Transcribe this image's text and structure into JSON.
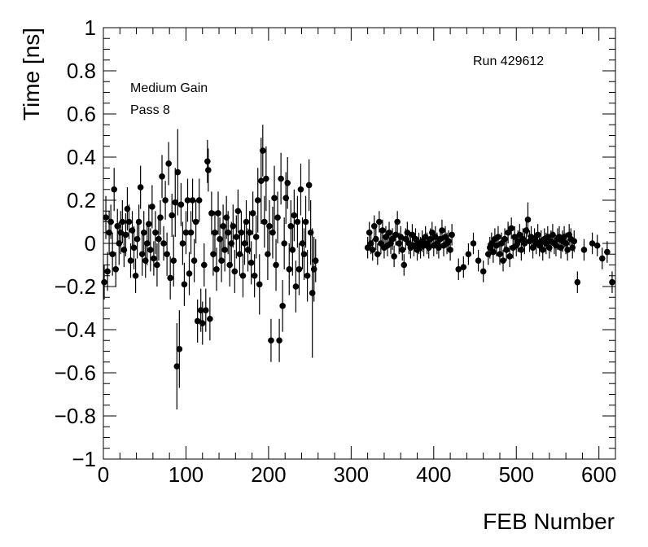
{
  "chart_data": {
    "type": "scatter",
    "xlabel": "FEB Number",
    "ylabel": "Time [ns]",
    "xlim": [
      0,
      620
    ],
    "ylim": [
      -1,
      1
    ],
    "x_ticks": [
      0,
      100,
      200,
      300,
      400,
      500,
      600
    ],
    "y_ticks": [
      -1,
      -0.8,
      -0.6,
      -0.4,
      -0.2,
      0,
      0.2,
      0.4,
      0.6,
      0.8,
      1
    ],
    "x_tick_labels": [
      "0",
      "100",
      "200",
      "300",
      "400",
      "500",
      "600"
    ],
    "y_tick_labels": [
      "−1",
      "−0.8",
      "−0.6",
      "−0.4",
      "−0.2",
      "0",
      "0.2",
      "0.4",
      "0.6",
      "0.8",
      "1"
    ],
    "annotations": [
      "Medium Gain",
      "Pass 8",
      "Run 429612"
    ],
    "marker": "filled-circle",
    "error_bars": true,
    "grid": false,
    "points": [
      {
        "x": 1,
        "y": -0.18,
        "e": 0.08
      },
      {
        "x": 3,
        "y": 0.12,
        "e": 0.1
      },
      {
        "x": 5,
        "y": -0.13,
        "e": 0.09
      },
      {
        "x": 7,
        "y": 0.05,
        "e": 0.1
      },
      {
        "x": 9,
        "y": 0.1,
        "e": 0.08
      },
      {
        "x": 11,
        "y": -0.05,
        "e": 0.1
      },
      {
        "x": 13,
        "y": 0.25,
        "e": 0.1
      },
      {
        "x": 15,
        "y": -0.12,
        "e": 0.08
      },
      {
        "x": 17,
        "y": 0.08,
        "e": 0.08
      },
      {
        "x": 19,
        "y": 0.0,
        "e": 0.1
      },
      {
        "x": 21,
        "y": 0.05,
        "e": 0.1
      },
      {
        "x": 23,
        "y": 0.1,
        "e": 0.1
      },
      {
        "x": 25,
        "y": -0.03,
        "e": 0.08
      },
      {
        "x": 27,
        "y": 0.04,
        "e": 0.1
      },
      {
        "x": 29,
        "y": 0.16,
        "e": 0.1
      },
      {
        "x": 31,
        "y": 0.1,
        "e": 0.08
      },
      {
        "x": 33,
        "y": -0.08,
        "e": 0.08
      },
      {
        "x": 35,
        "y": 0.06,
        "e": 0.09
      },
      {
        "x": 37,
        "y": -0.02,
        "e": 0.1
      },
      {
        "x": 39,
        "y": -0.15,
        "e": 0.08
      },
      {
        "x": 41,
        "y": 0.02,
        "e": 0.09
      },
      {
        "x": 43,
        "y": 0.1,
        "e": 0.08
      },
      {
        "x": 45,
        "y": 0.26,
        "e": 0.1
      },
      {
        "x": 47,
        "y": -0.05,
        "e": 0.1
      },
      {
        "x": 49,
        "y": 0.05,
        "e": 0.1
      },
      {
        "x": 51,
        "y": -0.08,
        "e": 0.08
      },
      {
        "x": 53,
        "y": 0.0,
        "e": 0.1
      },
      {
        "x": 55,
        "y": 0.09,
        "e": 0.09
      },
      {
        "x": 57,
        "y": -0.03,
        "e": 0.1
      },
      {
        "x": 59,
        "y": 0.17,
        "e": 0.1
      },
      {
        "x": 61,
        "y": -0.07,
        "e": 0.08
      },
      {
        "x": 63,
        "y": 0.05,
        "e": 0.1
      },
      {
        "x": 65,
        "y": -0.1,
        "e": 0.1
      },
      {
        "x": 67,
        "y": 0.02,
        "e": 0.1
      },
      {
        "x": 69,
        "y": 0.12,
        "e": 0.08
      },
      {
        "x": 71,
        "y": 0.31,
        "e": 0.1
      },
      {
        "x": 73,
        "y": 0.0,
        "e": 0.08
      },
      {
        "x": 75,
        "y": 0.2,
        "e": 0.09
      },
      {
        "x": 77,
        "y": -0.05,
        "e": 0.1
      },
      {
        "x": 79,
        "y": 0.37,
        "e": 0.1
      },
      {
        "x": 81,
        "y": -0.16,
        "e": 0.1
      },
      {
        "x": 83,
        "y": 0.13,
        "e": 0.1
      },
      {
        "x": 85,
        "y": -0.08,
        "e": 0.12
      },
      {
        "x": 87,
        "y": 0.19,
        "e": 0.16
      },
      {
        "x": 89,
        "y": -0.57,
        "e": 0.2
      },
      {
        "x": 90,
        "y": 0.33,
        "e": 0.2
      },
      {
        "x": 92,
        "y": -0.49,
        "e": 0.18
      },
      {
        "x": 94,
        "y": 0.18,
        "e": 0.1
      },
      {
        "x": 96,
        "y": 0.0,
        "e": 0.1
      },
      {
        "x": 98,
        "y": -0.19,
        "e": 0.1
      },
      {
        "x": 100,
        "y": 0.05,
        "e": 0.1
      },
      {
        "x": 102,
        "y": 0.2,
        "e": 0.1
      },
      {
        "x": 104,
        "y": -0.14,
        "e": 0.1
      },
      {
        "x": 106,
        "y": 0.05,
        "e": 0.1
      },
      {
        "x": 108,
        "y": 0.2,
        "e": 0.1
      },
      {
        "x": 110,
        "y": -0.08,
        "e": 0.1
      },
      {
        "x": 112,
        "y": 0.1,
        "e": 0.1
      },
      {
        "x": 114,
        "y": -0.36,
        "e": 0.1
      },
      {
        "x": 116,
        "y": 0.2,
        "e": 0.1
      },
      {
        "x": 118,
        "y": -0.31,
        "e": 0.1
      },
      {
        "x": 120,
        "y": -0.37,
        "e": 0.1
      },
      {
        "x": 122,
        "y": -0.1,
        "e": 0.1
      },
      {
        "x": 124,
        "y": -0.31,
        "e": 0.1
      },
      {
        "x": 126,
        "y": 0.38,
        "e": 0.1
      },
      {
        "x": 127,
        "y": 0.34,
        "e": 0.1
      },
      {
        "x": 129,
        "y": -0.35,
        "e": 0.1
      },
      {
        "x": 131,
        "y": 0.14,
        "e": 0.1
      },
      {
        "x": 133,
        "y": -0.05,
        "e": 0.1
      },
      {
        "x": 135,
        "y": 0.05,
        "e": 0.1
      },
      {
        "x": 137,
        "y": -0.12,
        "e": 0.1
      },
      {
        "x": 139,
        "y": 0.14,
        "e": 0.1
      },
      {
        "x": 141,
        "y": 0.02,
        "e": 0.1
      },
      {
        "x": 143,
        "y": -0.08,
        "e": 0.1
      },
      {
        "x": 145,
        "y": 0.08,
        "e": 0.1
      },
      {
        "x": 147,
        "y": -0.03,
        "e": 0.1
      },
      {
        "x": 149,
        "y": 0.12,
        "e": 0.1
      },
      {
        "x": 151,
        "y": 0.05,
        "e": 0.1
      },
      {
        "x": 153,
        "y": -0.1,
        "e": 0.1
      },
      {
        "x": 155,
        "y": 0.0,
        "e": 0.1
      },
      {
        "x": 157,
        "y": 0.08,
        "e": 0.1
      },
      {
        "x": 159,
        "y": -0.13,
        "e": 0.1
      },
      {
        "x": 161,
        "y": 0.03,
        "e": 0.1
      },
      {
        "x": 163,
        "y": 0.15,
        "e": 0.1
      },
      {
        "x": 165,
        "y": -0.05,
        "e": 0.1
      },
      {
        "x": 167,
        "y": 0.05,
        "e": 0.1
      },
      {
        "x": 169,
        "y": -0.15,
        "e": 0.1
      },
      {
        "x": 171,
        "y": 0.0,
        "e": 0.1
      },
      {
        "x": 173,
        "y": 0.1,
        "e": 0.1
      },
      {
        "x": 175,
        "y": -0.03,
        "e": 0.1
      },
      {
        "x": 177,
        "y": 0.05,
        "e": 0.1
      },
      {
        "x": 179,
        "y": -0.09,
        "e": 0.1
      },
      {
        "x": 181,
        "y": 0.14,
        "e": 0.1
      },
      {
        "x": 183,
        "y": -0.15,
        "e": 0.1
      },
      {
        "x": 185,
        "y": 0.03,
        "e": 0.1
      },
      {
        "x": 187,
        "y": 0.2,
        "e": 0.15
      },
      {
        "x": 189,
        "y": -0.19,
        "e": 0.14
      },
      {
        "x": 191,
        "y": 0.29,
        "e": 0.2
      },
      {
        "x": 193,
        "y": 0.43,
        "e": 0.12
      },
      {
        "x": 195,
        "y": 0.1,
        "e": 0.12
      },
      {
        "x": 197,
        "y": 0.3,
        "e": 0.15
      },
      {
        "x": 199,
        "y": -0.05,
        "e": 0.12
      },
      {
        "x": 201,
        "y": 0.08,
        "e": 0.12
      },
      {
        "x": 203,
        "y": -0.45,
        "e": 0.1
      },
      {
        "x": 205,
        "y": 0.05,
        "e": 0.12
      },
      {
        "x": 207,
        "y": 0.21,
        "e": 0.15
      },
      {
        "x": 209,
        "y": -0.1,
        "e": 0.12
      },
      {
        "x": 211,
        "y": 0.12,
        "e": 0.12
      },
      {
        "x": 213,
        "y": -0.45,
        "e": 0.1
      },
      {
        "x": 215,
        "y": 0.3,
        "e": 0.12
      },
      {
        "x": 217,
        "y": -0.29,
        "e": 0.12
      },
      {
        "x": 219,
        "y": 0.0,
        "e": 0.12
      },
      {
        "x": 221,
        "y": 0.21,
        "e": 0.12
      },
      {
        "x": 223,
        "y": 0.28,
        "e": 0.12
      },
      {
        "x": 225,
        "y": -0.12,
        "e": 0.12
      },
      {
        "x": 227,
        "y": 0.08,
        "e": 0.12
      },
      {
        "x": 229,
        "y": -0.03,
        "e": 0.12
      },
      {
        "x": 231,
        "y": 0.13,
        "e": 0.12
      },
      {
        "x": 233,
        "y": -0.2,
        "e": 0.12
      },
      {
        "x": 235,
        "y": 0.1,
        "e": 0.12
      },
      {
        "x": 237,
        "y": -0.12,
        "e": 0.12
      },
      {
        "x": 239,
        "y": 0.25,
        "e": 0.12
      },
      {
        "x": 241,
        "y": 0.0,
        "e": 0.12
      },
      {
        "x": 243,
        "y": -0.05,
        "e": 0.12
      },
      {
        "x": 245,
        "y": 0.1,
        "e": 0.12
      },
      {
        "x": 247,
        "y": -0.15,
        "e": 0.12
      },
      {
        "x": 249,
        "y": 0.27,
        "e": 0.12
      },
      {
        "x": 251,
        "y": 0.05,
        "e": 0.15
      },
      {
        "x": 253,
        "y": -0.23,
        "e": 0.3
      },
      {
        "x": 255,
        "y": -0.12,
        "e": 0.15
      },
      {
        "x": 257,
        "y": -0.08,
        "e": 0.1
      },
      {
        "x": 320,
        "y": -0.02,
        "e": 0.05
      },
      {
        "x": 322,
        "y": 0.05,
        "e": 0.05
      },
      {
        "x": 324,
        "y": 0.0,
        "e": 0.05
      },
      {
        "x": 326,
        "y": -0.03,
        "e": 0.05
      },
      {
        "x": 328,
        "y": 0.08,
        "e": 0.05
      },
      {
        "x": 330,
        "y": 0.02,
        "e": 0.05
      },
      {
        "x": 332,
        "y": -0.05,
        "e": 0.05
      },
      {
        "x": 334,
        "y": 0.1,
        "e": 0.05
      },
      {
        "x": 336,
        "y": 0.0,
        "e": 0.05
      },
      {
        "x": 338,
        "y": 0.06,
        "e": 0.05
      },
      {
        "x": 340,
        "y": -0.02,
        "e": 0.05
      },
      {
        "x": 342,
        "y": 0.03,
        "e": 0.05
      },
      {
        "x": 344,
        "y": -0.01,
        "e": 0.05
      },
      {
        "x": 346,
        "y": 0.05,
        "e": 0.05
      },
      {
        "x": 348,
        "y": 0.0,
        "e": 0.05
      },
      {
        "x": 350,
        "y": 0.02,
        "e": 0.05
      },
      {
        "x": 352,
        "y": -0.06,
        "e": 0.05
      },
      {
        "x": 354,
        "y": 0.04,
        "e": 0.05
      },
      {
        "x": 356,
        "y": 0.1,
        "e": 0.05
      },
      {
        "x": 358,
        "y": 0.0,
        "e": 0.05
      },
      {
        "x": 360,
        "y": 0.03,
        "e": 0.05
      },
      {
        "x": 362,
        "y": -0.03,
        "e": 0.05
      },
      {
        "x": 364,
        "y": -0.1,
        "e": 0.05
      },
      {
        "x": 366,
        "y": 0.02,
        "e": 0.05
      },
      {
        "x": 368,
        "y": 0.05,
        "e": 0.05
      },
      {
        "x": 370,
        "y": 0.0,
        "e": 0.05
      },
      {
        "x": 372,
        "y": -0.02,
        "e": 0.05
      },
      {
        "x": 374,
        "y": 0.04,
        "e": 0.05
      },
      {
        "x": 376,
        "y": -0.01,
        "e": 0.05
      },
      {
        "x": 378,
        "y": 0.02,
        "e": 0.05
      },
      {
        "x": 380,
        "y": -0.03,
        "e": 0.05
      },
      {
        "x": 382,
        "y": 0.0,
        "e": 0.05
      },
      {
        "x": 384,
        "y": -0.02,
        "e": 0.05
      },
      {
        "x": 386,
        "y": 0.01,
        "e": 0.05
      },
      {
        "x": 388,
        "y": -0.01,
        "e": 0.05
      },
      {
        "x": 390,
        "y": 0.03,
        "e": 0.05
      },
      {
        "x": 392,
        "y": 0.0,
        "e": 0.05
      },
      {
        "x": 394,
        "y": -0.02,
        "e": 0.05
      },
      {
        "x": 396,
        "y": 0.02,
        "e": 0.05
      },
      {
        "x": 398,
        "y": 0.05,
        "e": 0.05
      },
      {
        "x": 400,
        "y": -0.01,
        "e": 0.05
      },
      {
        "x": 402,
        "y": 0.03,
        "e": 0.05
      },
      {
        "x": 404,
        "y": 0.0,
        "e": 0.05
      },
      {
        "x": 406,
        "y": -0.02,
        "e": 0.05
      },
      {
        "x": 408,
        "y": 0.02,
        "e": 0.05
      },
      {
        "x": 410,
        "y": 0.06,
        "e": 0.05
      },
      {
        "x": 412,
        "y": -0.01,
        "e": 0.05
      },
      {
        "x": 414,
        "y": 0.03,
        "e": 0.05
      },
      {
        "x": 416,
        "y": 0.0,
        "e": 0.05
      },
      {
        "x": 418,
        "y": 0.01,
        "e": 0.05
      },
      {
        "x": 420,
        "y": -0.03,
        "e": 0.05
      },
      {
        "x": 422,
        "y": 0.04,
        "e": 0.05
      },
      {
        "x": 430,
        "y": -0.12,
        "e": 0.05
      },
      {
        "x": 436,
        "y": -0.11,
        "e": 0.05
      },
      {
        "x": 442,
        "y": -0.05,
        "e": 0.05
      },
      {
        "x": 448,
        "y": 0.0,
        "e": 0.05
      },
      {
        "x": 454,
        "y": -0.08,
        "e": 0.05
      },
      {
        "x": 460,
        "y": -0.13,
        "e": 0.05
      },
      {
        "x": 466,
        "y": -0.05,
        "e": 0.05
      },
      {
        "x": 468,
        "y": -0.02,
        "e": 0.05
      },
      {
        "x": 470,
        "y": 0.0,
        "e": 0.05
      },
      {
        "x": 472,
        "y": -0.04,
        "e": 0.05
      },
      {
        "x": 474,
        "y": 0.02,
        "e": 0.05
      },
      {
        "x": 476,
        "y": -0.01,
        "e": 0.05
      },
      {
        "x": 478,
        "y": 0.03,
        "e": 0.05
      },
      {
        "x": 480,
        "y": -0.05,
        "e": 0.05
      },
      {
        "x": 482,
        "y": 0.0,
        "e": 0.05
      },
      {
        "x": 484,
        "y": -0.08,
        "e": 0.05
      },
      {
        "x": 486,
        "y": 0.02,
        "e": 0.05
      },
      {
        "x": 488,
        "y": -0.03,
        "e": 0.05
      },
      {
        "x": 490,
        "y": 0.05,
        "e": 0.05
      },
      {
        "x": 492,
        "y": -0.06,
        "e": 0.05
      },
      {
        "x": 494,
        "y": 0.07,
        "e": 0.05
      },
      {
        "x": 496,
        "y": -0.02,
        "e": 0.05
      },
      {
        "x": 498,
        "y": 0.03,
        "e": 0.05
      },
      {
        "x": 500,
        "y": -0.01,
        "e": 0.05
      },
      {
        "x": 502,
        "y": 0.01,
        "e": 0.05
      },
      {
        "x": 504,
        "y": 0.04,
        "e": 0.05
      },
      {
        "x": 506,
        "y": -0.03,
        "e": 0.05
      },
      {
        "x": 508,
        "y": 0.02,
        "e": 0.05
      },
      {
        "x": 510,
        "y": 0.0,
        "e": 0.05
      },
      {
        "x": 512,
        "y": 0.06,
        "e": 0.05
      },
      {
        "x": 514,
        "y": 0.11,
        "e": 0.08
      },
      {
        "x": 516,
        "y": 0.01,
        "e": 0.05
      },
      {
        "x": 518,
        "y": 0.03,
        "e": 0.05
      },
      {
        "x": 520,
        "y": -0.02,
        "e": 0.05
      },
      {
        "x": 522,
        "y": 0.02,
        "e": 0.05
      },
      {
        "x": 524,
        "y": 0.0,
        "e": 0.05
      },
      {
        "x": 526,
        "y": 0.04,
        "e": 0.05
      },
      {
        "x": 528,
        "y": -0.01,
        "e": 0.05
      },
      {
        "x": 530,
        "y": 0.01,
        "e": 0.05
      },
      {
        "x": 532,
        "y": -0.03,
        "e": 0.05
      },
      {
        "x": 534,
        "y": 0.02,
        "e": 0.05
      },
      {
        "x": 536,
        "y": 0.0,
        "e": 0.05
      },
      {
        "x": 538,
        "y": 0.03,
        "e": 0.05
      },
      {
        "x": 540,
        "y": -0.02,
        "e": 0.05
      },
      {
        "x": 542,
        "y": 0.01,
        "e": 0.05
      },
      {
        "x": 544,
        "y": 0.04,
        "e": 0.05
      },
      {
        "x": 546,
        "y": 0.0,
        "e": 0.05
      },
      {
        "x": 548,
        "y": -0.01,
        "e": 0.05
      },
      {
        "x": 550,
        "y": 0.02,
        "e": 0.05
      },
      {
        "x": 552,
        "y": 0.03,
        "e": 0.05
      },
      {
        "x": 554,
        "y": -0.02,
        "e": 0.05
      },
      {
        "x": 556,
        "y": 0.01,
        "e": 0.05
      },
      {
        "x": 558,
        "y": 0.03,
        "e": 0.05
      },
      {
        "x": 560,
        "y": 0.0,
        "e": 0.05
      },
      {
        "x": 562,
        "y": -0.03,
        "e": 0.05
      },
      {
        "x": 564,
        "y": 0.04,
        "e": 0.05
      },
      {
        "x": 566,
        "y": 0.02,
        "e": 0.05
      },
      {
        "x": 568,
        "y": -0.02,
        "e": 0.05
      },
      {
        "x": 570,
        "y": 0.01,
        "e": 0.05
      },
      {
        "x": 574,
        "y": -0.18,
        "e": 0.05
      },
      {
        "x": 582,
        "y": -0.03,
        "e": 0.05
      },
      {
        "x": 592,
        "y": 0.0,
        "e": 0.05
      },
      {
        "x": 598,
        "y": -0.01,
        "e": 0.05
      },
      {
        "x": 604,
        "y": -0.07,
        "e": 0.05
      },
      {
        "x": 610,
        "y": -0.04,
        "e": 0.05
      },
      {
        "x": 616,
        "y": -0.18,
        "e": 0.05
      }
    ]
  }
}
